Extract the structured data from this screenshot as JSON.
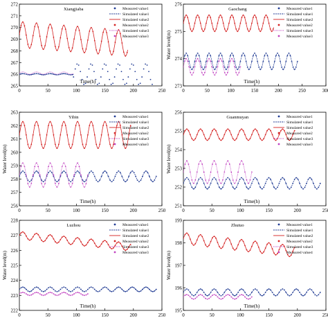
{
  "figure": {
    "legend_labels": [
      "Measured value1",
      "Simulated value1",
      "Simulated value2",
      "Measured value2",
      "Simulated value3",
      "Measured value3"
    ],
    "legend_labels_zhutuo": [
      "Measured value1",
      "Simulated value1",
      "Simulated value2",
      "Measured value2",
      "Simulated value3",
      "Measured value4"
    ],
    "colors": {
      "series1": "#1f3a93",
      "series2": "#d42020",
      "series3": "#c040c0",
      "axis": "#000000"
    }
  },
  "chart_data": [
    {
      "type": "line",
      "title": "Xiangjiaba",
      "xlabel": "Time(h)",
      "ylabel": "",
      "xlim": [
        0,
        250
      ],
      "ylim": [
        265,
        272
      ],
      "xticks": [
        0,
        50,
        100,
        150,
        200,
        250
      ],
      "yticks": [
        265,
        266,
        267,
        268,
        269,
        270,
        271,
        272
      ],
      "series": [
        {
          "name": "Measured value1",
          "role": "low",
          "base": 266.0,
          "amp": 0.05,
          "period": 24,
          "start": 0,
          "end": 95
        },
        {
          "name": "Simulated value1",
          "role": "low",
          "base": 266.0,
          "amp": 0.05,
          "period": 24,
          "start": 0,
          "end": 95
        },
        {
          "name": "Measured value1",
          "role": "low2",
          "base": 266.0,
          "amp": 0.9,
          "period": 24,
          "start": 95,
          "end": 235
        },
        {
          "name": "Simulated value2",
          "role": "high",
          "base": 269.4,
          "amp": 1.1,
          "period": 24,
          "start": 0,
          "end": 190,
          "trend": -0.004
        },
        {
          "name": "Measured value2",
          "role": "high",
          "base": 269.4,
          "amp": 1.1,
          "period": 24,
          "start": 0,
          "end": 190,
          "trend": -0.004
        },
        {
          "name": "Simulated value3",
          "role": "mid",
          "base": 266.1,
          "amp": 0.1,
          "period": 24,
          "start": 0,
          "end": 95
        }
      ]
    },
    {
      "type": "line",
      "title": "Gaochang",
      "xlabel": "Time(h)",
      "ylabel": "Water level(m)",
      "xlim": [
        0,
        300
      ],
      "ylim": [
        273,
        276
      ],
      "xticks": [
        0,
        50,
        100,
        150,
        200,
        250,
        300
      ],
      "yticks": [
        273,
        274,
        275,
        276
      ],
      "series": [
        {
          "name": "Measured value1",
          "role": "low",
          "base": 273.9,
          "amp": 0.3,
          "period": 24,
          "start": 0,
          "end": 240
        },
        {
          "name": "Simulated value1",
          "role": "low",
          "base": 273.9,
          "amp": 0.3,
          "period": 24,
          "start": 0,
          "end": 240
        },
        {
          "name": "Simulated value2",
          "role": "high",
          "base": 275.3,
          "amp": 0.3,
          "period": 24,
          "start": 0,
          "end": 190
        },
        {
          "name": "Measured value2",
          "role": "high",
          "base": 275.3,
          "amp": 0.3,
          "period": 24,
          "start": 0,
          "end": 190
        },
        {
          "name": "Simulated value3",
          "role": "mid",
          "base": 273.7,
          "amp": 0.3,
          "period": 24,
          "start": 0,
          "end": 120
        },
        {
          "name": "Measured value3",
          "role": "mid",
          "base": 273.7,
          "amp": 0.3,
          "period": 24,
          "start": 0,
          "end": 120
        }
      ]
    },
    {
      "type": "line",
      "title": "Yibin",
      "xlabel": "Time(h)",
      "ylabel": "Water level(m)",
      "xlim": [
        0,
        250
      ],
      "ylim": [
        256,
        263
      ],
      "xticks": [
        0,
        50,
        100,
        150,
        200,
        250
      ],
      "yticks": [
        256,
        257,
        258,
        259,
        260,
        261,
        262,
        263
      ],
      "series": [
        {
          "name": "Measured value1",
          "role": "low",
          "base": 258.2,
          "amp": 0.4,
          "period": 24,
          "start": 0,
          "end": 240
        },
        {
          "name": "Simulated value1",
          "role": "low",
          "base": 258.2,
          "amp": 0.4,
          "period": 24,
          "start": 0,
          "end": 240
        },
        {
          "name": "Simulated value2",
          "role": "high",
          "base": 261.3,
          "amp": 1.0,
          "period": 24,
          "start": 0,
          "end": 195
        },
        {
          "name": "Measured value2",
          "role": "high",
          "base": 261.3,
          "amp": 1.0,
          "period": 24,
          "start": 0,
          "end": 195
        },
        {
          "name": "Simulated value3",
          "role": "mid",
          "base": 258.3,
          "amp": 0.9,
          "period": 24,
          "start": 0,
          "end": 120
        },
        {
          "name": "Measured value3",
          "role": "mid",
          "base": 258.3,
          "amp": 0.9,
          "period": 24,
          "start": 0,
          "end": 120
        }
      ]
    },
    {
      "type": "line",
      "title": "Guanmuyan",
      "xlabel": "Time(h)",
      "ylabel": "Water level(m)",
      "xlim": [
        0,
        250
      ],
      "ylim": [
        251,
        256
      ],
      "xticks": [
        0,
        50,
        100,
        150,
        200,
        250
      ],
      "yticks": [
        251,
        252,
        253,
        254,
        255,
        256
      ],
      "series": [
        {
          "name": "Measured value1",
          "role": "low",
          "base": 252.2,
          "amp": 0.3,
          "period": 24,
          "start": 0,
          "end": 240
        },
        {
          "name": "Simulated value1",
          "role": "low",
          "base": 252.2,
          "amp": 0.3,
          "period": 24,
          "start": 0,
          "end": 240
        },
        {
          "name": "Simulated value2",
          "role": "high",
          "base": 254.8,
          "amp": 0.3,
          "period": 24,
          "start": 0,
          "end": 195
        },
        {
          "name": "Measured value2",
          "role": "high",
          "base": 254.8,
          "amp": 0.3,
          "period": 24,
          "start": 0,
          "end": 195
        },
        {
          "name": "Simulated value3",
          "role": "mid",
          "base": 252.8,
          "amp": 0.6,
          "period": 24,
          "start": 0,
          "end": 120
        },
        {
          "name": "Measured value3",
          "role": "mid",
          "base": 252.8,
          "amp": 0.6,
          "period": 24,
          "start": 0,
          "end": 120
        }
      ]
    },
    {
      "type": "line",
      "title": "Luzhou",
      "xlabel": "Time(h)",
      "ylabel": "Water level(m)",
      "xlim": [
        0,
        250
      ],
      "ylim": [
        222,
        228
      ],
      "xticks": [
        0,
        50,
        100,
        150,
        200,
        250
      ],
      "yticks": [
        222,
        223,
        224,
        225,
        226,
        227,
        228
      ],
      "series": [
        {
          "name": "Measured value1",
          "role": "low",
          "base": 223.4,
          "amp": 0.15,
          "period": 24,
          "start": 0,
          "end": 240
        },
        {
          "name": "Simulated value1",
          "role": "low",
          "base": 223.4,
          "amp": 0.15,
          "period": 24,
          "start": 0,
          "end": 240
        },
        {
          "name": "Simulated value2",
          "role": "high",
          "base": 227.0,
          "amp": 0.25,
          "period": 24,
          "start": 0,
          "end": 195,
          "trend": -0.004
        },
        {
          "name": "Measured value2",
          "role": "high",
          "base": 227.0,
          "amp": 0.25,
          "period": 24,
          "start": 0,
          "end": 195,
          "trend": -0.004
        },
        {
          "name": "Simulated value3",
          "role": "mid",
          "base": 223.1,
          "amp": 0.1,
          "period": 24,
          "start": 0,
          "end": 120
        },
        {
          "name": "Measured value3",
          "role": "mid",
          "base": 223.1,
          "amp": 0.1,
          "period": 24,
          "start": 0,
          "end": 120
        }
      ]
    },
    {
      "type": "line",
      "title": "Zhutuo",
      "xlabel": "Time(h)",
      "ylabel": "Water level(m)",
      "xlim": [
        0,
        250
      ],
      "ylim": [
        195,
        199
      ],
      "xticks": [
        0,
        50,
        100,
        150,
        200,
        250
      ],
      "yticks": [
        195,
        196,
        197,
        198,
        199
      ],
      "series": [
        {
          "name": "Measured value1",
          "role": "low",
          "base": 195.8,
          "amp": 0.15,
          "period": 24,
          "start": 0,
          "end": 240
        },
        {
          "name": "Simulated value1",
          "role": "low",
          "base": 195.8,
          "amp": 0.15,
          "period": 24,
          "start": 0,
          "end": 240
        },
        {
          "name": "Simulated value2",
          "role": "high",
          "base": 198.2,
          "amp": 0.25,
          "period": 24,
          "start": 0,
          "end": 195,
          "trend": -0.003
        },
        {
          "name": "Measured value2",
          "role": "high",
          "base": 198.2,
          "amp": 0.25,
          "period": 24,
          "start": 0,
          "end": 195,
          "trend": -0.003
        },
        {
          "name": "Simulated value3",
          "role": "mid",
          "base": 195.6,
          "amp": 0.1,
          "period": 24,
          "start": 0,
          "end": 120
        },
        {
          "name": "Measured value4",
          "role": "mid",
          "base": 195.6,
          "amp": 0.1,
          "period": 24,
          "start": 0,
          "end": 120
        }
      ]
    }
  ]
}
